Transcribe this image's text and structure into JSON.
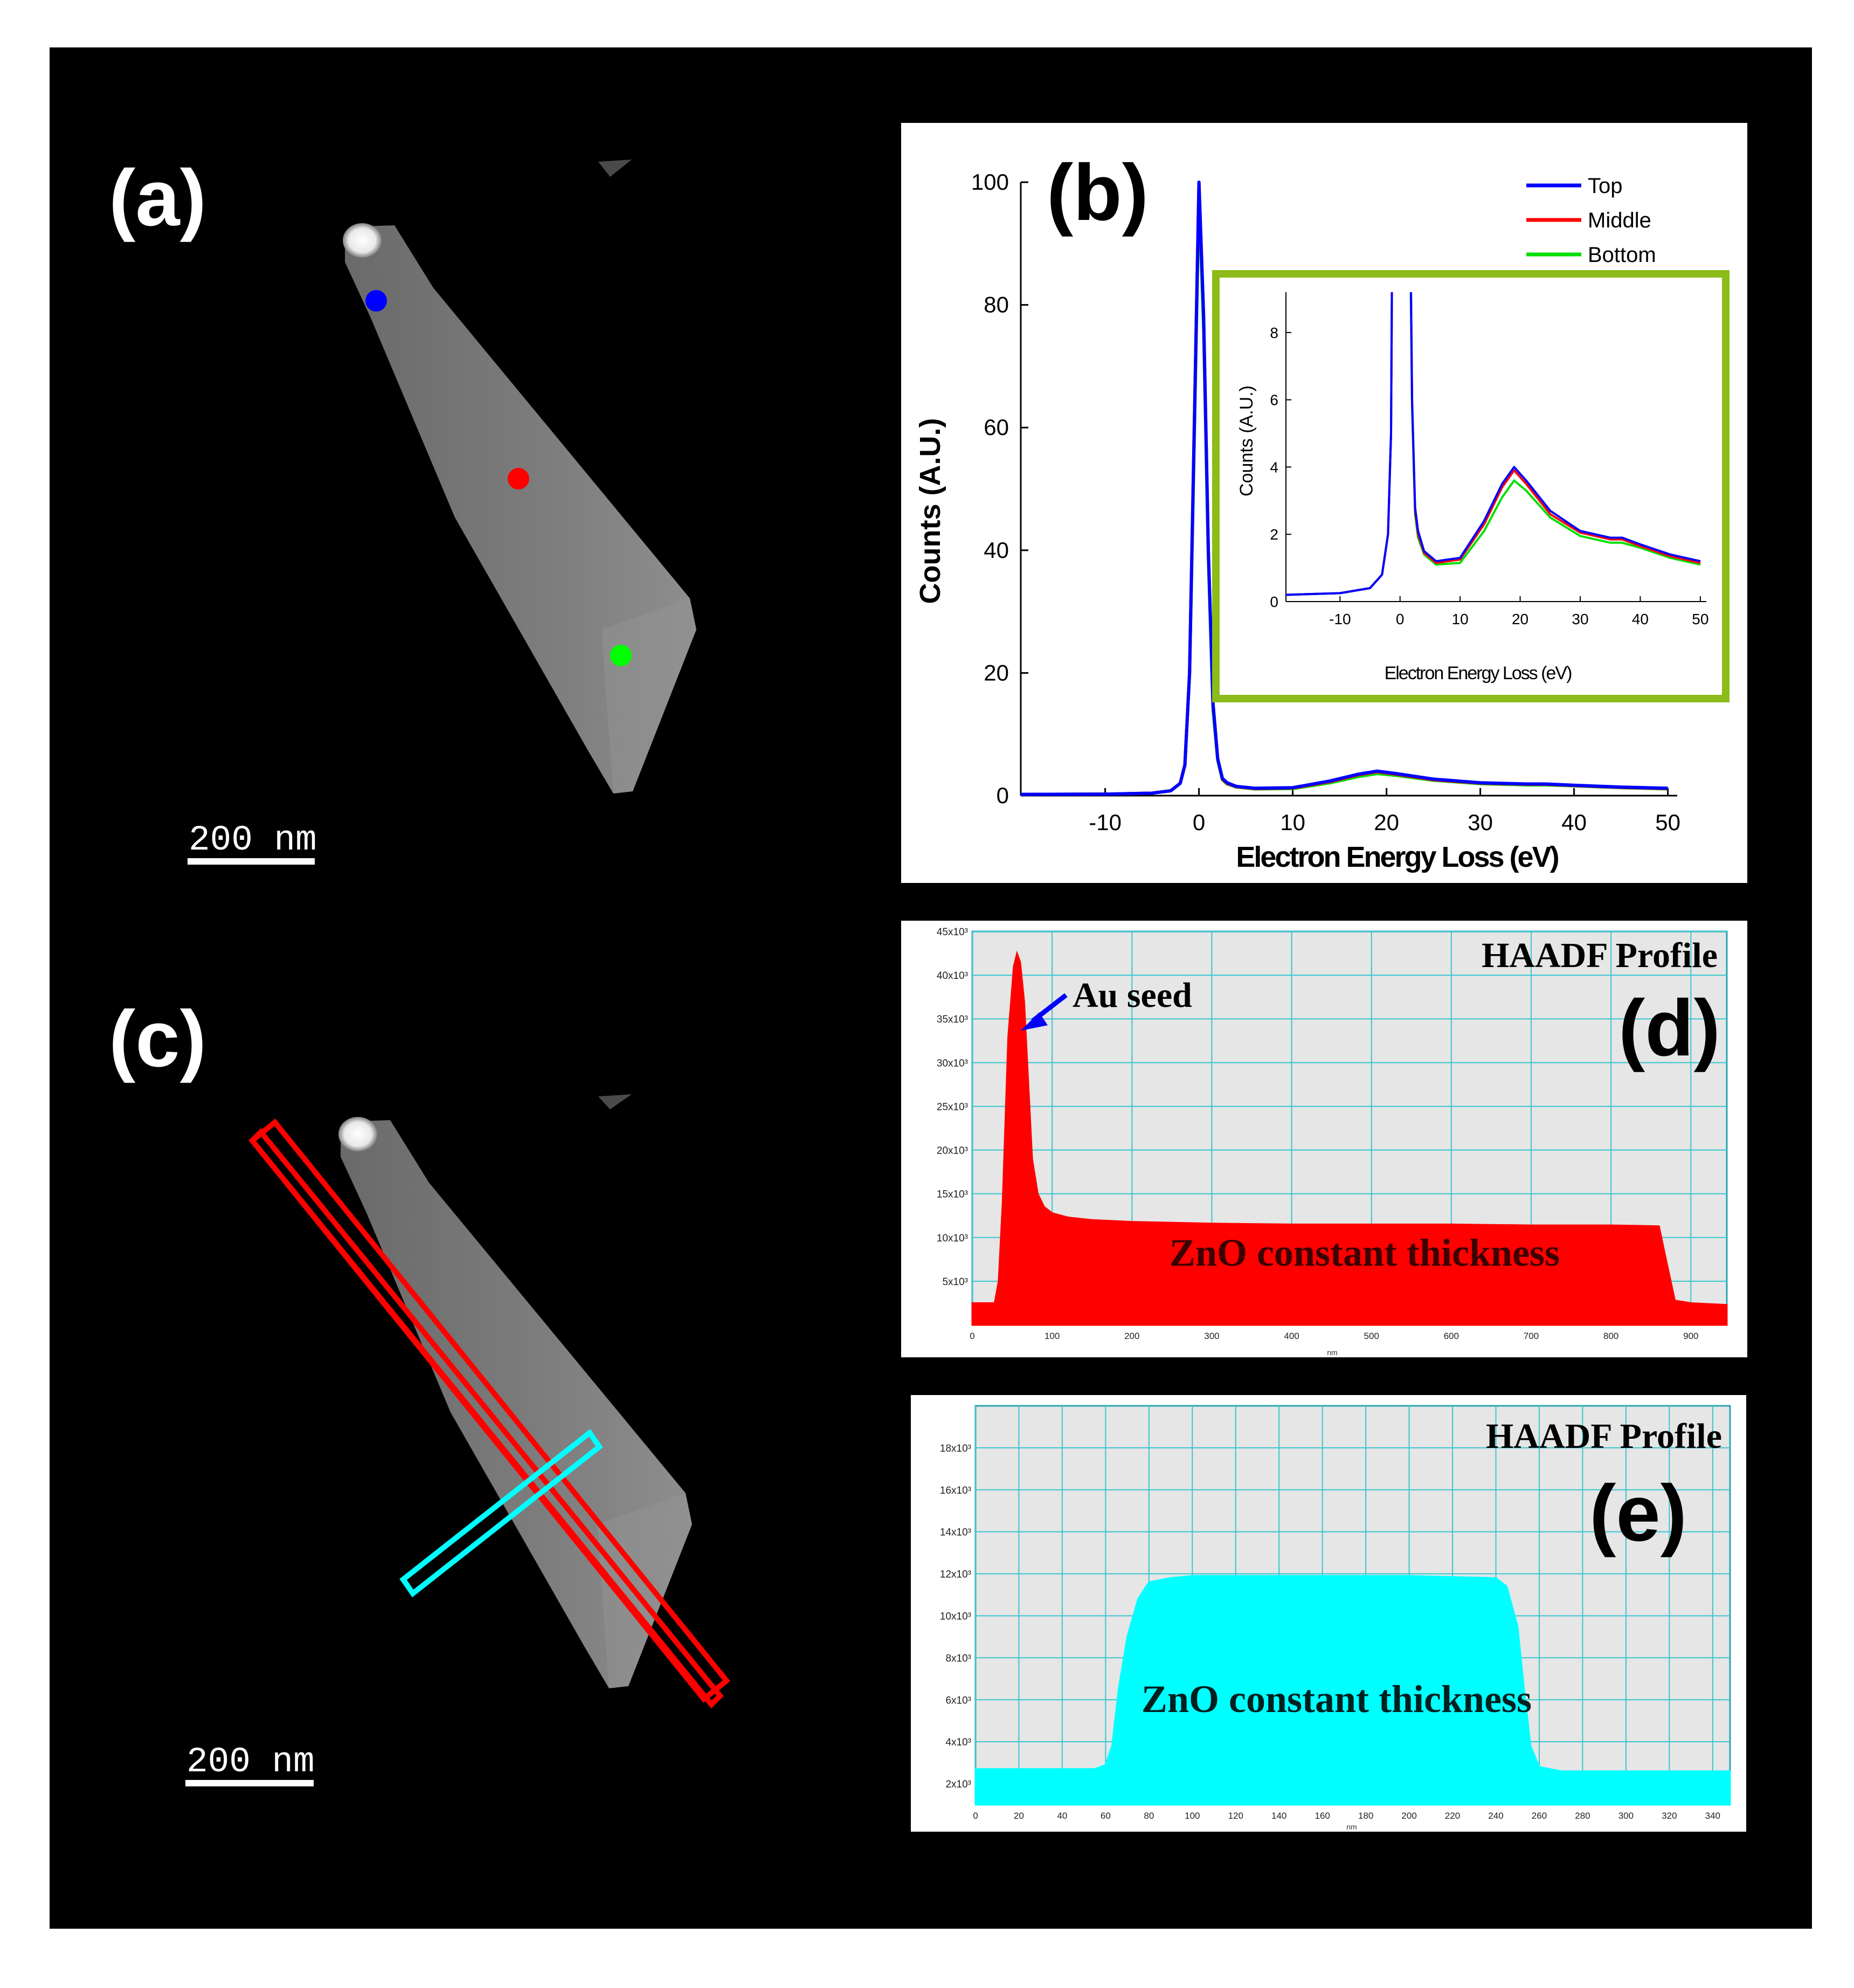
{
  "panels": {
    "a": {
      "label": "(a)",
      "scale_bar": "200 nm",
      "markers": [
        "blue",
        "red",
        "green"
      ]
    },
    "c": {
      "label": "(c)",
      "scale_bar": "200 nm"
    }
  },
  "chart_data": [
    {
      "id": "b",
      "type": "line",
      "panel_label": "(b)",
      "xlabel": "Electron Energy Loss (eV)",
      "ylabel": "Counts (A.U.)",
      "xlim": [
        -19,
        51
      ],
      "ylim": [
        0,
        100
      ],
      "xticks": [
        -10,
        0,
        10,
        20,
        30,
        40,
        50
      ],
      "yticks": [
        0,
        20,
        40,
        60,
        80,
        100
      ],
      "legend": [
        "Top",
        "Middle",
        "Bottom"
      ],
      "colors": {
        "Top": "#0000ff",
        "Middle": "#ff0000",
        "Bottom": "#00e000"
      },
      "x": [
        -19,
        -10,
        -5,
        -3,
        -2,
        -1.5,
        -1,
        -0.5,
        0,
        0.5,
        1,
        1.5,
        2,
        2.5,
        3,
        4,
        6,
        10,
        14,
        17,
        19,
        21,
        25,
        30,
        35,
        37,
        40,
        45,
        50
      ],
      "series": [
        {
          "name": "Top",
          "values": [
            0.2,
            0.25,
            0.4,
            0.8,
            2,
            5,
            20,
            60,
            100,
            78,
            40,
            15,
            6,
            2.8,
            2.1,
            1.5,
            1.2,
            1.3,
            2.4,
            3.5,
            4.0,
            3.6,
            2.7,
            2.1,
            1.9,
            1.9,
            1.7,
            1.4,
            1.2
          ]
        },
        {
          "name": "Middle",
          "values": [
            0.2,
            0.25,
            0.4,
            0.8,
            2,
            5,
            20,
            60,
            100,
            78,
            40,
            15,
            6,
            2.7,
            2.0,
            1.45,
            1.15,
            1.25,
            2.3,
            3.4,
            3.9,
            3.5,
            2.6,
            2.05,
            1.85,
            1.85,
            1.65,
            1.35,
            1.15
          ]
        },
        {
          "name": "Bottom",
          "values": [
            0.2,
            0.25,
            0.4,
            0.8,
            2,
            5,
            20,
            58,
            98,
            76,
            39,
            14,
            5.8,
            2.6,
            1.9,
            1.4,
            1.1,
            1.15,
            2.1,
            3.1,
            3.6,
            3.3,
            2.5,
            1.95,
            1.75,
            1.75,
            1.6,
            1.3,
            1.1
          ]
        }
      ]
    },
    {
      "id": "b-inset",
      "type": "line",
      "xlabel": "Electron Energy Loss (eV)",
      "ylabel": "Counts (A.U.)",
      "xlim": [
        -19,
        51
      ],
      "ylim": [
        0,
        9.2
      ],
      "xticks": [
        -10,
        0,
        10,
        20,
        30,
        40,
        50
      ],
      "yticks": [
        0,
        2,
        4,
        6,
        8
      ],
      "note": "zoom of panel (b)"
    },
    {
      "id": "d",
      "type": "area",
      "title": "HAADF Profile",
      "panel_label": "(d)",
      "xlabel": "nm",
      "xlim": [
        0,
        945
      ],
      "ylim": [
        0,
        45000
      ],
      "xticks": [
        0,
        100,
        200,
        300,
        400,
        500,
        600,
        700,
        800,
        900
      ],
      "yticks": [
        5000,
        10000,
        15000,
        20000,
        25000,
        30000,
        35000,
        40000,
        45000
      ],
      "ytick_labels": [
        "5x10³",
        "10x10³",
        "15x10³",
        "20x10³",
        "25x10³",
        "30x10³",
        "35x10³",
        "40x10³",
        "45x10³"
      ],
      "annotations": [
        "Au seed",
        "ZnO constant thickness"
      ],
      "color": "#ff0000",
      "x": [
        0,
        28,
        33,
        38,
        45,
        52,
        56,
        60,
        65,
        70,
        75,
        82,
        90,
        100,
        120,
        150,
        200,
        300,
        400,
        500,
        600,
        700,
        800,
        860,
        870,
        880,
        900,
        945
      ],
      "values": [
        2500,
        2500,
        5000,
        14000,
        33000,
        41000,
        42500,
        41500,
        37000,
        28000,
        19000,
        15000,
        13500,
        12800,
        12300,
        12000,
        11800,
        11600,
        11500,
        11500,
        11500,
        11400,
        11400,
        11300,
        7000,
        2800,
        2500,
        2300
      ]
    },
    {
      "id": "e",
      "type": "area",
      "title": "HAADF Profile",
      "panel_label": "(e)",
      "xlabel": "nm",
      "xlim": [
        0,
        348
      ],
      "ylim": [
        1000,
        20000
      ],
      "xticks": [
        0,
        20,
        40,
        60,
        80,
        100,
        120,
        140,
        160,
        180,
        200,
        220,
        240,
        260,
        280,
        300,
        320,
        340
      ],
      "yticks": [
        2000,
        4000,
        6000,
        8000,
        10000,
        12000,
        14000,
        16000,
        18000
      ],
      "ytick_labels": [
        "2x10³",
        "4x10³",
        "6x10³",
        "8x10³",
        "10x10³",
        "12x10³",
        "14x10³",
        "16x10³",
        "18x10³"
      ],
      "annotations": [
        "ZnO constant thickness"
      ],
      "color": "#00ffff",
      "x": [
        0,
        55,
        60,
        63,
        66,
        70,
        75,
        80,
        90,
        100,
        150,
        200,
        240,
        245,
        250,
        253,
        256,
        260,
        270,
        348
      ],
      "values": [
        2700,
        2700,
        2900,
        3800,
        6500,
        9000,
        10800,
        11600,
        11800,
        11900,
        11900,
        11900,
        11800,
        11400,
        9500,
        6500,
        3800,
        2800,
        2600,
        2600
      ]
    }
  ]
}
